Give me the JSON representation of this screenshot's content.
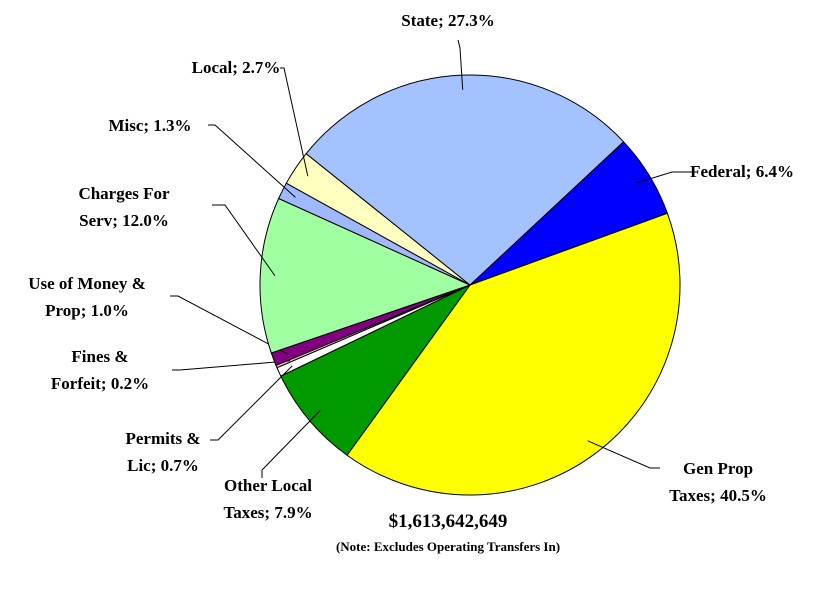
{
  "chart_data": {
    "type": "pie",
    "categories": [
      "Federal",
      "Gen Prop Taxes",
      "Other Local Taxes",
      "Permits & Lic",
      "Fines & Forfeit",
      "Use of Money & Prop",
      "Charges For Serv",
      "Misc",
      "Local",
      "State"
    ],
    "values": [
      6.4,
      40.5,
      7.9,
      0.7,
      0.2,
      1.0,
      12.0,
      1.3,
      2.7,
      27.3
    ],
    "value_labels": [
      "6.4%",
      "40.5%",
      "7.9%",
      "0.7%",
      "0.2%",
      "1.0%",
      "12.0%",
      "1.3%",
      "2.7%",
      "27.3%"
    ],
    "colors": [
      "#0000ff",
      "#ffff00",
      "#009900",
      "#ffffff",
      "#ffb6c8",
      "#800080",
      "#a0ffa0",
      "#a0b8ff",
      "#ffffc0",
      "#a4c2ff"
    ],
    "annotations": [
      "$1,613,642,649",
      "(Note: Excludes Operating Transfers In)"
    ]
  }
}
